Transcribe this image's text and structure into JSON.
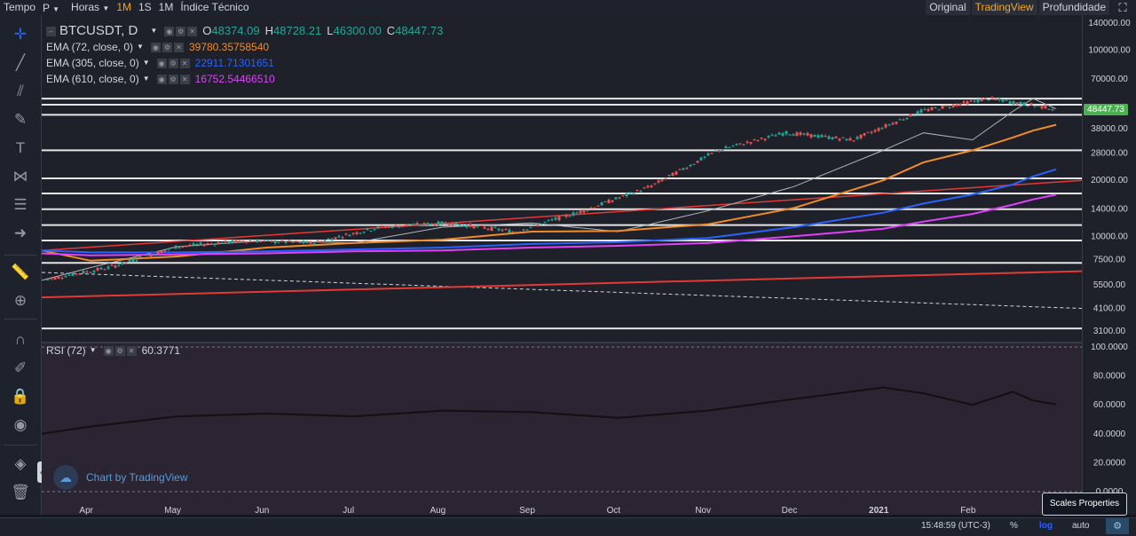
{
  "topbar": {
    "tempo": "Tempo",
    "type_select": "P",
    "horas": "Horas",
    "items": [
      "1M",
      "1S",
      "1M"
    ],
    "active_index": 0,
    "indicator": "Índice Técnico",
    "right": [
      "Original",
      "TradingView",
      "Profundidade"
    ],
    "right_active": 1
  },
  "legend": {
    "symbol": "BTCUSDT, D",
    "open_label": "O",
    "open": "48374.09",
    "high_label": "H",
    "high": "48728.21",
    "low_label": "L",
    "low": "46300.00",
    "close_label": "C",
    "close": "48447.73",
    "indicators": [
      {
        "name": "EMA (72, close, 0)",
        "value": "39780.35758540",
        "color": "#f28c28"
      },
      {
        "name": "EMA (305, close, 0)",
        "value": "22911.71301651",
        "color": "#2962ff"
      },
      {
        "name": "EMA (610, close, 0)",
        "value": "16752.54466510",
        "color": "#e040fb"
      }
    ]
  },
  "rsi": {
    "name": "RSI (72)",
    "value": "60.3771"
  },
  "price_scale": {
    "main_ticks": [
      "140000.00",
      "100000.00",
      "70000.00",
      "48447.73",
      "38000.00",
      "28000.00",
      "20000.00",
      "14000.00",
      "10000.00",
      "7500.00",
      "5500.00",
      "4100.00",
      "3100.00"
    ],
    "current_price": "48447.73",
    "rsi_ticks": [
      "100.0000",
      "80.0000",
      "60.0000",
      "40.0000",
      "20.0000",
      "0.0000"
    ]
  },
  "time_axis": [
    "Apr",
    "May",
    "Jun",
    "Jul",
    "Aug",
    "Sep",
    "Oct",
    "Nov",
    "Dec",
    "2021",
    "Feb",
    "M"
  ],
  "watermark": "Chart by TradingView",
  "bottom": {
    "time": "15:48:59 (UTC-3)",
    "percent": "%",
    "log": "log",
    "auto": "auto"
  },
  "tooltip": "Scales Properties",
  "colors": {
    "up": "#26a69a",
    "down": "#ef5350",
    "ema72": "#f28c28",
    "ema305": "#2962ff",
    "ema610": "#e040fb",
    "trend": "#e53935"
  },
  "chart_data": {
    "type": "line",
    "title": "BTCUSDT, D",
    "log_scale": true,
    "x": [
      "2020-03-15",
      "2020-04-01",
      "2020-05-01",
      "2020-06-01",
      "2020-07-01",
      "2020-08-01",
      "2020-09-01",
      "2020-10-01",
      "2020-11-01",
      "2020-12-01",
      "2021-01-01",
      "2021-01-15",
      "2021-02-01",
      "2021-02-15",
      "2021-02-22",
      "2021-03-02"
    ],
    "series": [
      {
        "name": "BTCUSDT",
        "values": [
          5800,
          6800,
          8800,
          9500,
          9200,
          11200,
          11800,
          10600,
          13700,
          18500,
          29000,
          36000,
          33000,
          47000,
          55000,
          48447.73
        ]
      },
      {
        "name": "EMA (72, close, 0)",
        "values": [
          8400,
          7400,
          7800,
          8700,
          9200,
          9600,
          10600,
          10700,
          11600,
          14200,
          20000,
          25000,
          29000,
          34000,
          37000,
          39780.36
        ]
      },
      {
        "name": "EMA (305, close, 0)",
        "values": [
          8400,
          8200,
          8200,
          8300,
          8500,
          8700,
          9100,
          9300,
          9800,
          11200,
          13400,
          15000,
          16800,
          19000,
          21000,
          22911.71
        ]
      },
      {
        "name": "EMA (610, close, 0)",
        "values": [
          8100,
          7900,
          8000,
          8100,
          8300,
          8400,
          8700,
          8900,
          9200,
          10000,
          11000,
          12000,
          13200,
          14800,
          15800,
          16752.54
        ]
      },
      {
        "name": "RSI (72)",
        "values": [
          40,
          45,
          52,
          54,
          52,
          56,
          55,
          51,
          56,
          64,
          72,
          68,
          60,
          69,
          63,
          60.38
        ]
      }
    ],
    "ylim": [
      3100,
      140000
    ],
    "rsi_ylim": [
      0,
      100
    ]
  }
}
